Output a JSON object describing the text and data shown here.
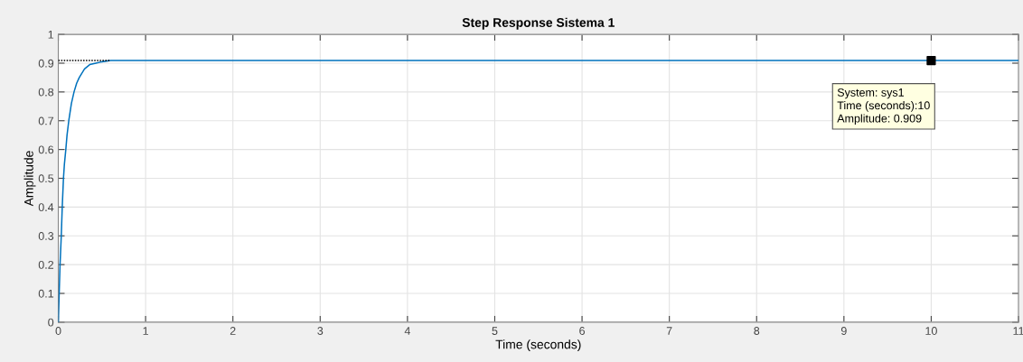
{
  "chart_data": {
    "type": "line",
    "title": "Step Response Sistema 1",
    "xlabel": "Time (seconds)",
    "ylabel": "Amplitude",
    "series": [
      {
        "color": "#0072bd",
        "line_style": "solid",
        "marker": "none",
        "x": [
          0,
          0.01,
          0.02,
          0.034,
          0.045,
          0.059,
          0.07,
          0.086,
          0.1,
          0.12,
          0.15,
          0.18,
          0.21,
          0.24,
          0.3,
          0.36,
          0.43,
          0.5,
          0.6,
          1,
          2,
          4,
          6,
          8,
          11
        ],
        "values": [
          0,
          0.1,
          0.2,
          0.3,
          0.4,
          0.5,
          0.55,
          0.6,
          0.65,
          0.7,
          0.76,
          0.8,
          0.83,
          0.85,
          0.88,
          0.895,
          0.9,
          0.905,
          0.909,
          0.909,
          0.909,
          0.909,
          0.909,
          0.909,
          0.909
        ]
      },
      {
        "color": "#000000",
        "line_style": "dotted",
        "marker": "none",
        "x": [
          0,
          0.6
        ],
        "values": [
          0.909,
          0.909
        ]
      },
      {
        "type": "scatter",
        "color": "#000000",
        "marker": "square",
        "x": [
          10
        ],
        "values": [
          0.909
        ]
      }
    ],
    "annotations": [
      {
        "text": "System: sys1\nTime (seconds):10\nAmplitude: 0.909",
        "x": 10,
        "y": 0.909
      }
    ],
    "xlim": [
      0,
      11
    ],
    "xticks": [
      0,
      1,
      2,
      3,
      4,
      5,
      6,
      7,
      8,
      9,
      10,
      11
    ],
    "ylim": [
      0,
      1
    ],
    "yticks": [
      0,
      0.1,
      0.2,
      0.3,
      0.4,
      0.5,
      0.6,
      0.7,
      0.8,
      0.9,
      1
    ],
    "grid": true
  }
}
